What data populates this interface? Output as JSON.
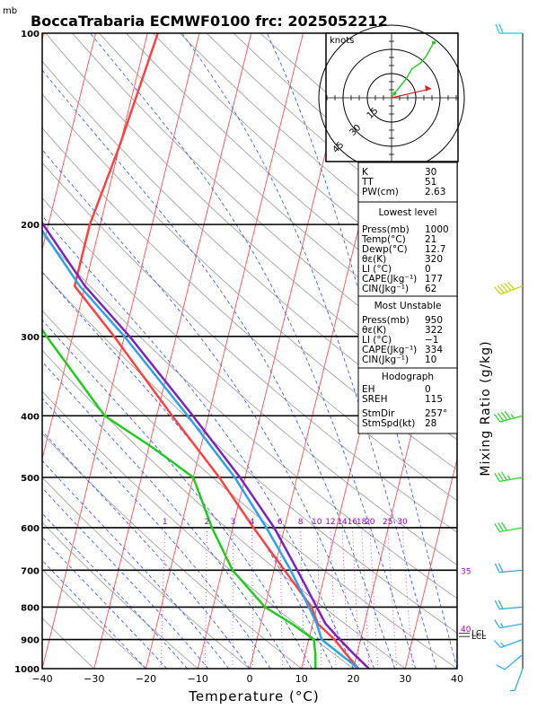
{
  "chart_data": {
    "type": "skew-t",
    "title": "BoccaTrabaria ECMWF0100 frc: 2025052212",
    "pressure_unit": "mb",
    "xlabel": "Temperature (°C)",
    "ylabel_right": "Mixing Ratio (g/kg)",
    "x_ticks": [
      "−40",
      "−30",
      "−20",
      "−10",
      "0",
      "10",
      "20",
      "30",
      "40"
    ],
    "x_range": [
      -40,
      40
    ],
    "pressure_range": [
      1000,
      100
    ],
    "pressure_ticks": [
      "100",
      "200",
      "300",
      "400",
      "500",
      "600",
      "700",
      "800",
      "900",
      "1000"
    ],
    "mixing_ratio_labels": [
      "1",
      "2",
      "3",
      "4",
      "6",
      "8",
      "10",
      "12",
      "14",
      "16",
      "18",
      "20",
      "25",
      "30"
    ],
    "theta_labels": [
      "35",
      "40"
    ],
    "lcl_label": "LCL",
    "series": [
      {
        "name": "temperature",
        "color": "#ff4040",
        "points": [
          [
            1000,
            21
          ],
          [
            950,
            18
          ],
          [
            900,
            15
          ],
          [
            850,
            11
          ],
          [
            800,
            9
          ],
          [
            700,
            2
          ],
          [
            600,
            -6
          ],
          [
            500,
            -15
          ],
          [
            400,
            -27
          ],
          [
            300,
            -42
          ],
          [
            250,
            -52
          ],
          [
            200,
            -52
          ],
          [
            150,
            -50
          ],
          [
            100,
            -48
          ]
        ]
      },
      {
        "name": "dewpoint",
        "color": "#20cc20",
        "points": [
          [
            1000,
            12.7
          ],
          [
            950,
            12
          ],
          [
            900,
            11
          ],
          [
            850,
            6
          ],
          [
            800,
            0
          ],
          [
            700,
            -8
          ],
          [
            600,
            -14
          ],
          [
            500,
            -20
          ],
          [
            450,
            -29
          ],
          [
            400,
            -40
          ],
          [
            300,
            -55
          ],
          [
            250,
            -64
          ],
          [
            200,
            -66
          ],
          [
            150,
            -73
          ],
          [
            100,
            -81
          ]
        ]
      },
      {
        "name": "parcel",
        "color": "#2aa4e8",
        "points": [
          [
            1000,
            21
          ],
          [
            900,
            12.5
          ],
          [
            850,
            10.8
          ],
          [
            800,
            8.5
          ],
          [
            700,
            3.2
          ],
          [
            600,
            -3.5
          ],
          [
            500,
            -12
          ],
          [
            400,
            -24
          ],
          [
            300,
            -40
          ],
          [
            250,
            -51
          ],
          [
            200,
            -62
          ],
          [
            150,
            -74
          ],
          [
            110,
            -85
          ]
        ]
      },
      {
        "name": "virtual_temperature",
        "color": "#8020c0",
        "points": [
          [
            1000,
            23
          ],
          [
            950,
            19.5
          ],
          [
            900,
            16
          ],
          [
            850,
            12.5
          ],
          [
            800,
            10
          ],
          [
            700,
            4.5
          ],
          [
            600,
            -2
          ],
          [
            500,
            -11
          ],
          [
            400,
            -23
          ],
          [
            300,
            -39
          ],
          [
            250,
            -50
          ],
          [
            200,
            -61
          ],
          [
            150,
            -73
          ],
          [
            110,
            -84
          ]
        ]
      }
    ],
    "wind_barbs": [
      {
        "p": 1000,
        "dir": 200,
        "kt": 5
      },
      {
        "p": 950,
        "dir": 230,
        "kt": 10
      },
      {
        "p": 900,
        "dir": 250,
        "kt": 15
      },
      {
        "p": 850,
        "dir": 260,
        "kt": 15
      },
      {
        "p": 800,
        "dir": 265,
        "kt": 20
      },
      {
        "p": 700,
        "dir": 265,
        "kt": 20
      },
      {
        "p": 600,
        "dir": 260,
        "kt": 30
      },
      {
        "p": 500,
        "dir": 260,
        "kt": 35
      },
      {
        "p": 400,
        "dir": 255,
        "kt": 45
      },
      {
        "p": 250,
        "dir": 250,
        "kt": 50
      },
      {
        "p": 100,
        "dir": 270,
        "kt": 20
      }
    ],
    "hodograph": {
      "units_label": "knots",
      "ring_labels": [
        "15",
        "30",
        "45"
      ],
      "ring_kts": [
        15,
        30,
        45
      ],
      "points_kt": [
        [
          0,
          0
        ],
        [
          2,
          3
        ],
        [
          6,
          8
        ],
        [
          10,
          13
        ],
        [
          14,
          20
        ],
        [
          20,
          24
        ],
        [
          24,
          29
        ],
        [
          29,
          38
        ]
      ],
      "storm_motion": {
        "dir": 257,
        "kt": 28
      }
    },
    "indices": {
      "group1": [
        [
          "K",
          "30"
        ],
        [
          "TT",
          "51"
        ],
        [
          "PW(cm)",
          "2.63"
        ]
      ],
      "lowest_title": "Lowest level",
      "lowest": [
        [
          "Press(mb)",
          "1000"
        ],
        [
          "Temp(°C)",
          "21"
        ],
        [
          "Dewp(°C)",
          "12.7"
        ],
        [
          "θε(K)",
          "320"
        ],
        [
          "LI (°C)",
          "0"
        ],
        [
          "CAPE(Jkg⁻¹)",
          "177"
        ],
        [
          "CIN(Jkg⁻¹)",
          "62"
        ]
      ],
      "mu_title": "Most Unstable",
      "mu": [
        [
          "Press(mb)",
          "950"
        ],
        [
          "θε(K)",
          "322"
        ],
        [
          "LI (°C)",
          "−1"
        ],
        [
          "CAPE(Jkg⁻¹)",
          "334"
        ],
        [
          "CIN(Jkg⁻¹)",
          "10"
        ]
      ],
      "hodo_title": "Hodograph",
      "hodo": [
        [
          "EH",
          "0"
        ],
        [
          "SREH",
          "115"
        ]
      ],
      "storm": [
        [
          "StmDir",
          "257°"
        ],
        [
          "StmSpd(kt)",
          "28"
        ]
      ]
    }
  }
}
